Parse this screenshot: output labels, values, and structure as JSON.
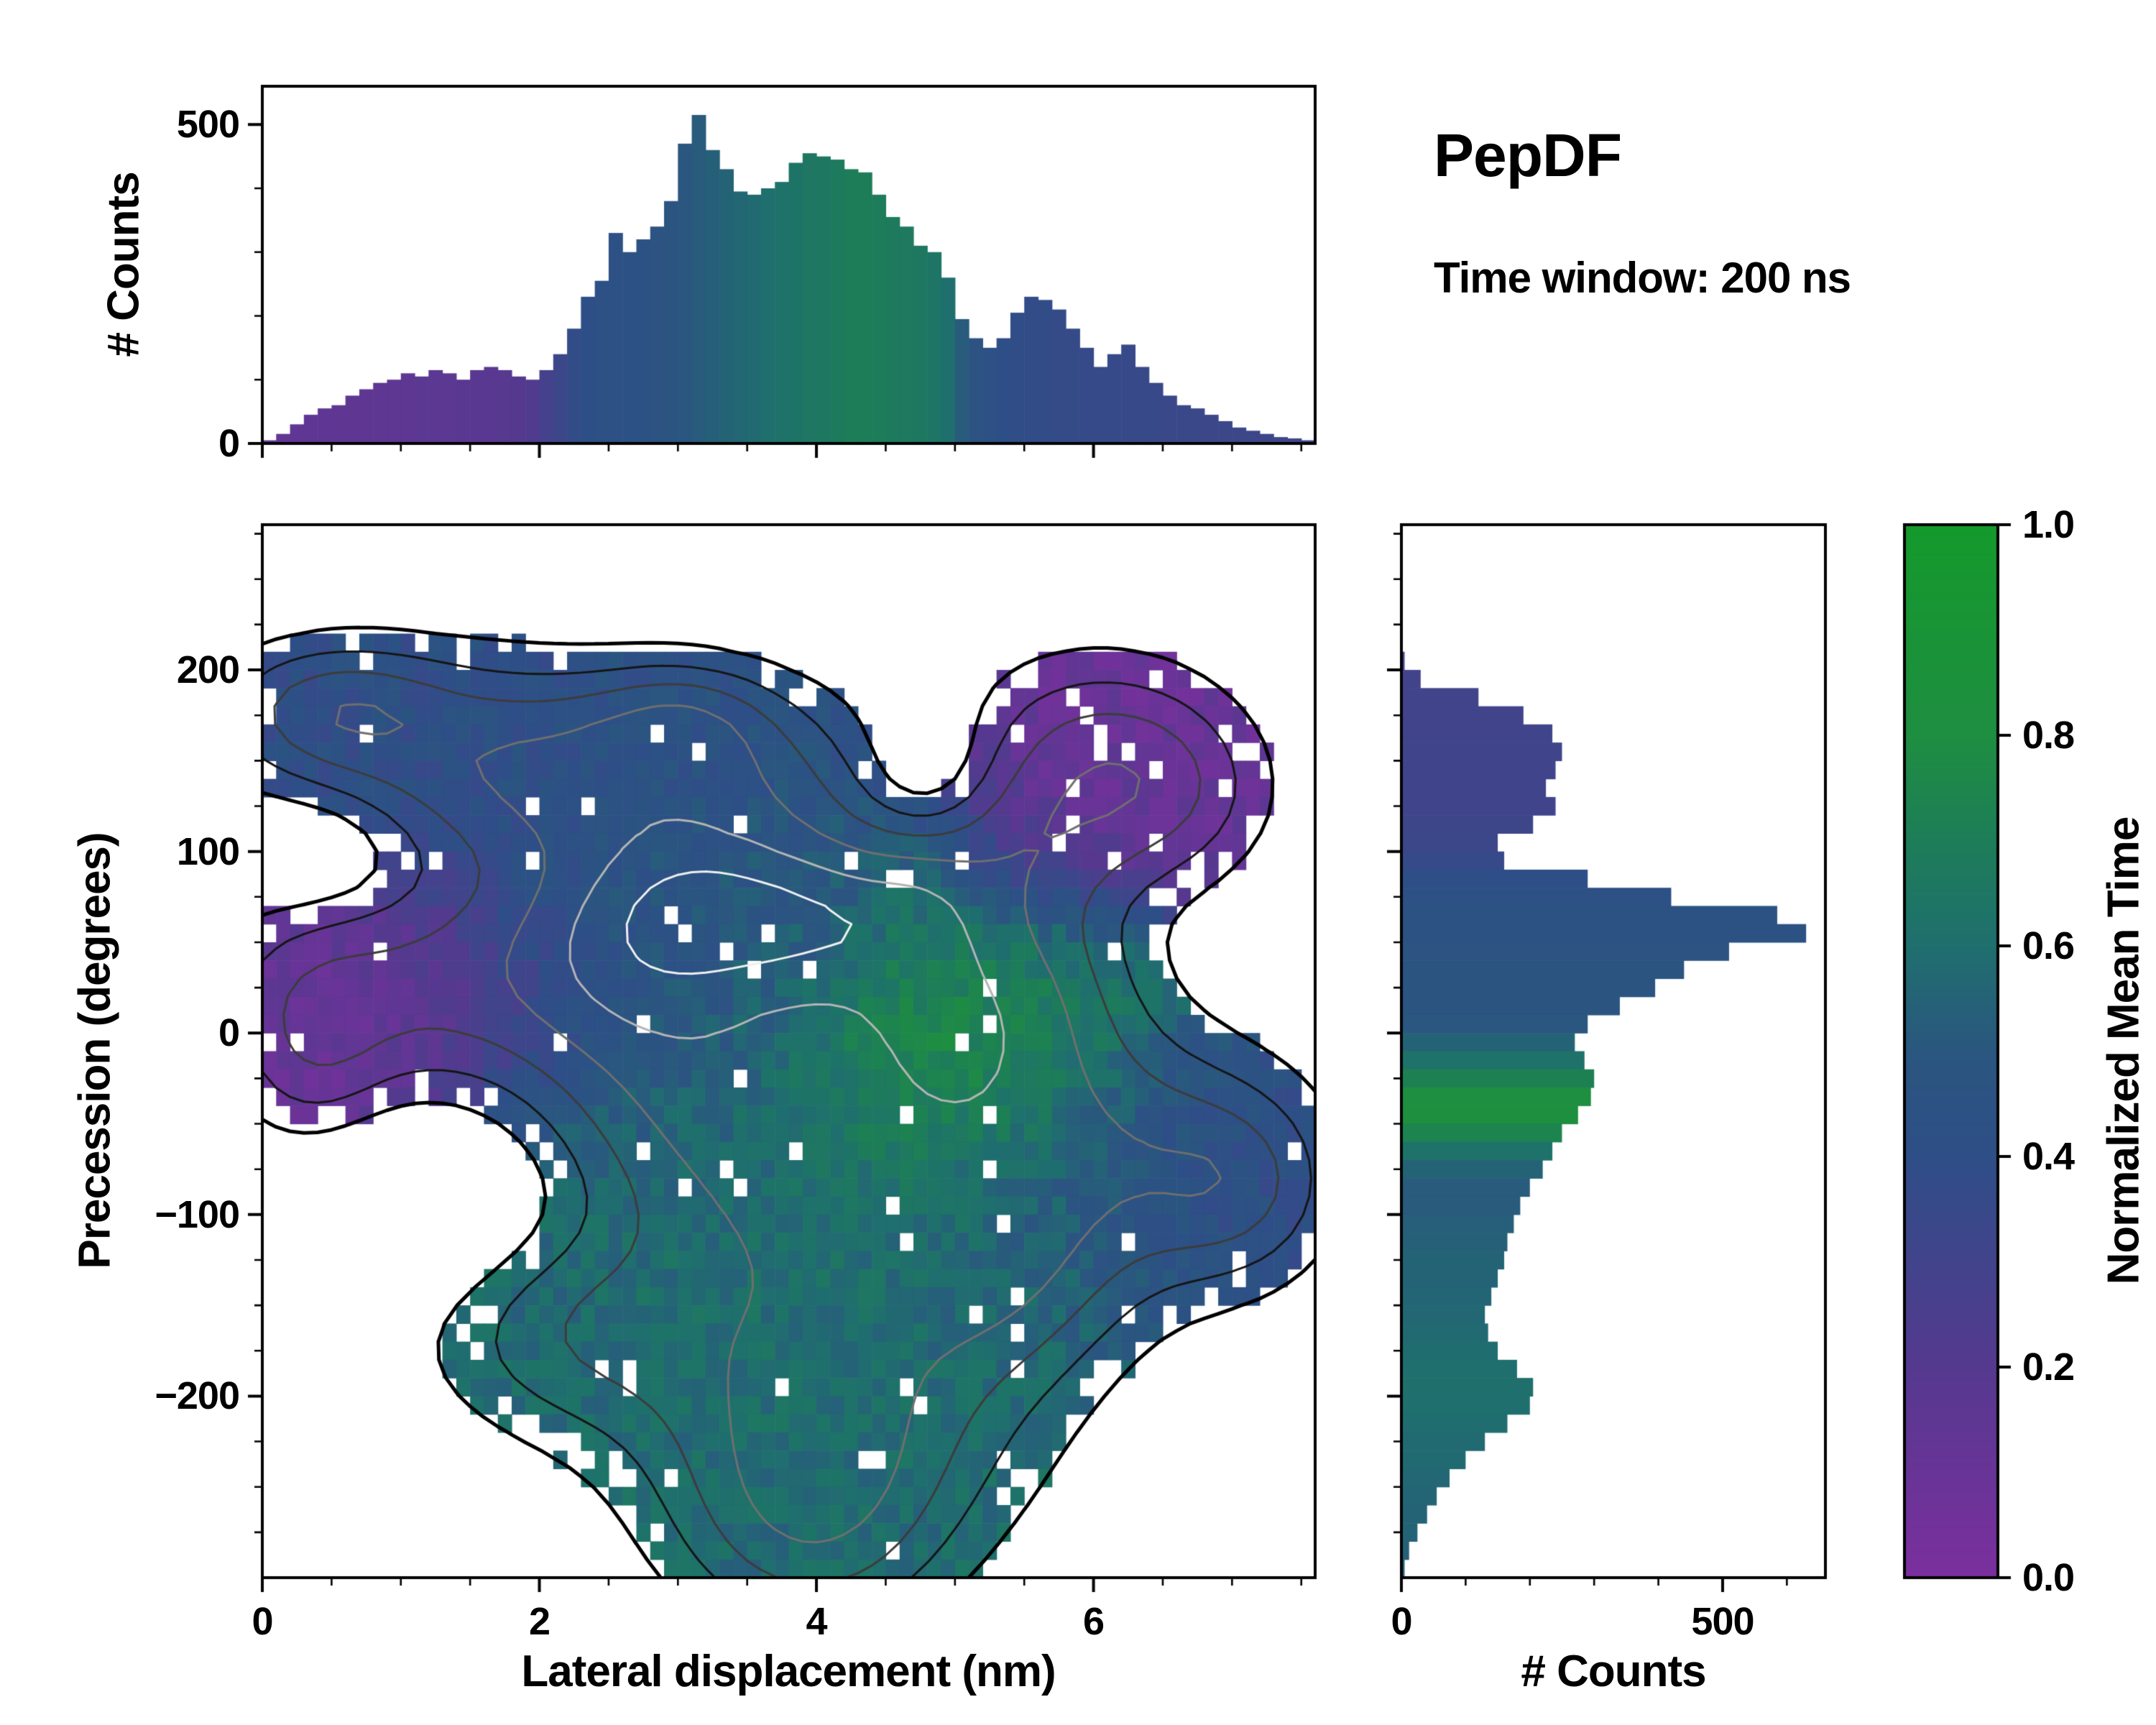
{
  "title": {
    "text": "PepDF"
  },
  "subtitle": {
    "text": "Time window: 200 ns"
  },
  "colormap": {
    "stops": [
      [
        0.0,
        "#7b2f9e"
      ],
      [
        0.2,
        "#55398f"
      ],
      [
        0.4,
        "#2e4e87"
      ],
      [
        0.5,
        "#2a567f"
      ],
      [
        0.6,
        "#1f6f6e"
      ],
      [
        0.7,
        "#1d7d58"
      ],
      [
        0.8,
        "#1e8e41"
      ],
      [
        1.0,
        "#14992c"
      ]
    ]
  },
  "chart_data": {
    "top_histogram": {
      "type": "bar",
      "ylabel": "# Counts",
      "xlim": [
        0,
        7.6
      ],
      "ylim": [
        0,
        560
      ],
      "yticks": [
        0,
        500
      ],
      "bin_width": 0.1,
      "x_start": 0.05,
      "counts": [
        5,
        15,
        30,
        45,
        55,
        60,
        75,
        85,
        95,
        100,
        110,
        105,
        115,
        110,
        100,
        115,
        120,
        115,
        105,
        100,
        115,
        140,
        180,
        230,
        255,
        330,
        300,
        320,
        340,
        380,
        470,
        515,
        460,
        430,
        395,
        390,
        400,
        410,
        440,
        455,
        450,
        445,
        430,
        425,
        390,
        355,
        340,
        310,
        300,
        260,
        195,
        165,
        150,
        165,
        205,
        230,
        225,
        210,
        180,
        150,
        120,
        140,
        155,
        120,
        95,
        75,
        60,
        55,
        45,
        35,
        25,
        20,
        15,
        10,
        8,
        5
      ],
      "mean_time": [
        0.13,
        0.13,
        0.14,
        0.14,
        0.14,
        0.15,
        0.15,
        0.15,
        0.16,
        0.16,
        0.16,
        0.17,
        0.17,
        0.17,
        0.18,
        0.18,
        0.18,
        0.19,
        0.2,
        0.22,
        0.28,
        0.33,
        0.38,
        0.4,
        0.42,
        0.43,
        0.44,
        0.45,
        0.46,
        0.47,
        0.5,
        0.52,
        0.54,
        0.55,
        0.57,
        0.58,
        0.6,
        0.62,
        0.63,
        0.65,
        0.66,
        0.68,
        0.7,
        0.7,
        0.69,
        0.68,
        0.67,
        0.66,
        0.64,
        0.6,
        0.52,
        0.46,
        0.42,
        0.4,
        0.39,
        0.38,
        0.38,
        0.37,
        0.37,
        0.36,
        0.36,
        0.36,
        0.35,
        0.35,
        0.35,
        0.34,
        0.34,
        0.34,
        0.33,
        0.33,
        0.33,
        0.32,
        0.32,
        0.32,
        0.31,
        0.31
      ]
    },
    "main_heatmap": {
      "type": "heatmap",
      "xlabel": "Lateral displacement (nm)",
      "ylabel": "Precession (degrees)",
      "xlim": [
        0,
        7.6
      ],
      "ylim": [
        -300,
        280
      ],
      "xticks": [
        0,
        2,
        4,
        6
      ],
      "yticks": [
        -200,
        -100,
        0,
        100,
        200
      ],
      "cell_size": [
        0.1,
        10
      ],
      "color_meaning": "Normalized Mean Time",
      "occupancy_threshold": 0.32,
      "density_blobs": [
        [
          0.5,
          180,
          0.55,
          24,
          0.8,
          0.4
        ],
        [
          1.2,
          155,
          1.0,
          40,
          0.75,
          0.42
        ],
        [
          2.1,
          140,
          0.8,
          38,
          0.55,
          0.4
        ],
        [
          3.3,
          140,
          0.9,
          38,
          0.9,
          0.45
        ],
        [
          3.05,
          172,
          0.45,
          22,
          0.6,
          0.45
        ],
        [
          6.0,
          150,
          0.65,
          40,
          1.0,
          0.1
        ],
        [
          5.45,
          100,
          0.55,
          30,
          0.6,
          0.15
        ],
        [
          6.6,
          130,
          0.5,
          35,
          0.5,
          0.12
        ],
        [
          1.05,
          25,
          0.95,
          42,
          0.9,
          0.13
        ],
        [
          0.35,
          -15,
          0.4,
          42,
          0.55,
          0.1
        ],
        [
          3.5,
          62,
          1.05,
          42,
          1.5,
          0.5
        ],
        [
          3.15,
          68,
          0.45,
          24,
          0.55,
          0.48
        ],
        [
          4.05,
          62,
          0.45,
          24,
          0.55,
          0.48
        ],
        [
          2.55,
          40,
          0.6,
          40,
          0.6,
          0.45
        ],
        [
          5.0,
          -5,
          0.75,
          50,
          1.1,
          0.88
        ],
        [
          4.75,
          60,
          0.32,
          38,
          0.5,
          0.8
        ],
        [
          5.6,
          30,
          0.5,
          40,
          0.5,
          0.55
        ],
        [
          6.3,
          -70,
          0.85,
          50,
          0.95,
          0.42
        ],
        [
          7.05,
          -85,
          0.45,
          35,
          0.6,
          0.4
        ],
        [
          4.0,
          -90,
          1.15,
          55,
          1.1,
          0.6
        ],
        [
          3.1,
          -25,
          0.8,
          45,
          0.9,
          0.52
        ],
        [
          2.2,
          -165,
          0.75,
          40,
          0.7,
          0.58
        ],
        [
          4.1,
          -205,
          1.0,
          55,
          1.2,
          0.6
        ],
        [
          3.95,
          -272,
          0.65,
          45,
          0.9,
          0.58
        ],
        [
          5.35,
          -135,
          0.6,
          40,
          0.7,
          0.55
        ]
      ],
      "void_blobs": [
        [
          4.8,
          140,
          0.35,
          30,
          -0.55
        ],
        [
          0.45,
          100,
          0.45,
          25,
          -0.4
        ],
        [
          1.1,
          -95,
          0.8,
          35,
          -0.45
        ]
      ],
      "contour_levels": [
        [
          0.32,
          "#000000",
          5
        ],
        [
          0.62,
          "#151515",
          3
        ],
        [
          0.95,
          "#3c3c3c",
          3
        ],
        [
          1.35,
          "#6f6f6f",
          3
        ],
        [
          1.8,
          "#b4b4b4",
          3
        ],
        [
          2.3,
          "#f0f0f0",
          3
        ]
      ]
    },
    "right_histogram": {
      "type": "barh",
      "xlabel": "# Counts",
      "xlim": [
        0,
        660
      ],
      "ylim": [
        -300,
        280
      ],
      "xticks": [
        0,
        500
      ],
      "bin_height": 10,
      "y_start": 275,
      "counts": [
        0,
        0,
        0,
        0,
        0,
        0,
        0,
        5,
        30,
        120,
        190,
        235,
        250,
        240,
        225,
        240,
        205,
        150,
        160,
        290,
        420,
        585,
        630,
        510,
        440,
        395,
        340,
        290,
        270,
        285,
        300,
        295,
        275,
        250,
        235,
        220,
        200,
        185,
        175,
        165,
        160,
        150,
        140,
        130,
        135,
        150,
        180,
        205,
        200,
        165,
        130,
        100,
        75,
        55,
        40,
        25,
        12,
        5
      ],
      "mean_time": [
        0.3,
        0.3,
        0.3,
        0.3,
        0.3,
        0.3,
        0.3,
        0.3,
        0.3,
        0.3,
        0.3,
        0.31,
        0.31,
        0.31,
        0.31,
        0.31,
        0.32,
        0.33,
        0.36,
        0.4,
        0.43,
        0.45,
        0.45,
        0.46,
        0.47,
        0.48,
        0.48,
        0.5,
        0.55,
        0.62,
        0.72,
        0.8,
        0.82,
        0.74,
        0.62,
        0.55,
        0.52,
        0.52,
        0.53,
        0.54,
        0.55,
        0.55,
        0.56,
        0.57,
        0.58,
        0.59,
        0.6,
        0.61,
        0.6,
        0.59,
        0.58,
        0.58,
        0.57,
        0.56,
        0.55,
        0.55,
        0.54,
        0.54
      ]
    },
    "colorbar": {
      "label": "Normalized Mean Time",
      "min": 0,
      "max": 1,
      "ticks": [
        0,
        0.2,
        0.4,
        0.6,
        0.8,
        1.0
      ],
      "tick_labels": [
        "0.0",
        "0.2",
        "0.4",
        "0.6",
        "0.8",
        "1.0"
      ]
    }
  }
}
